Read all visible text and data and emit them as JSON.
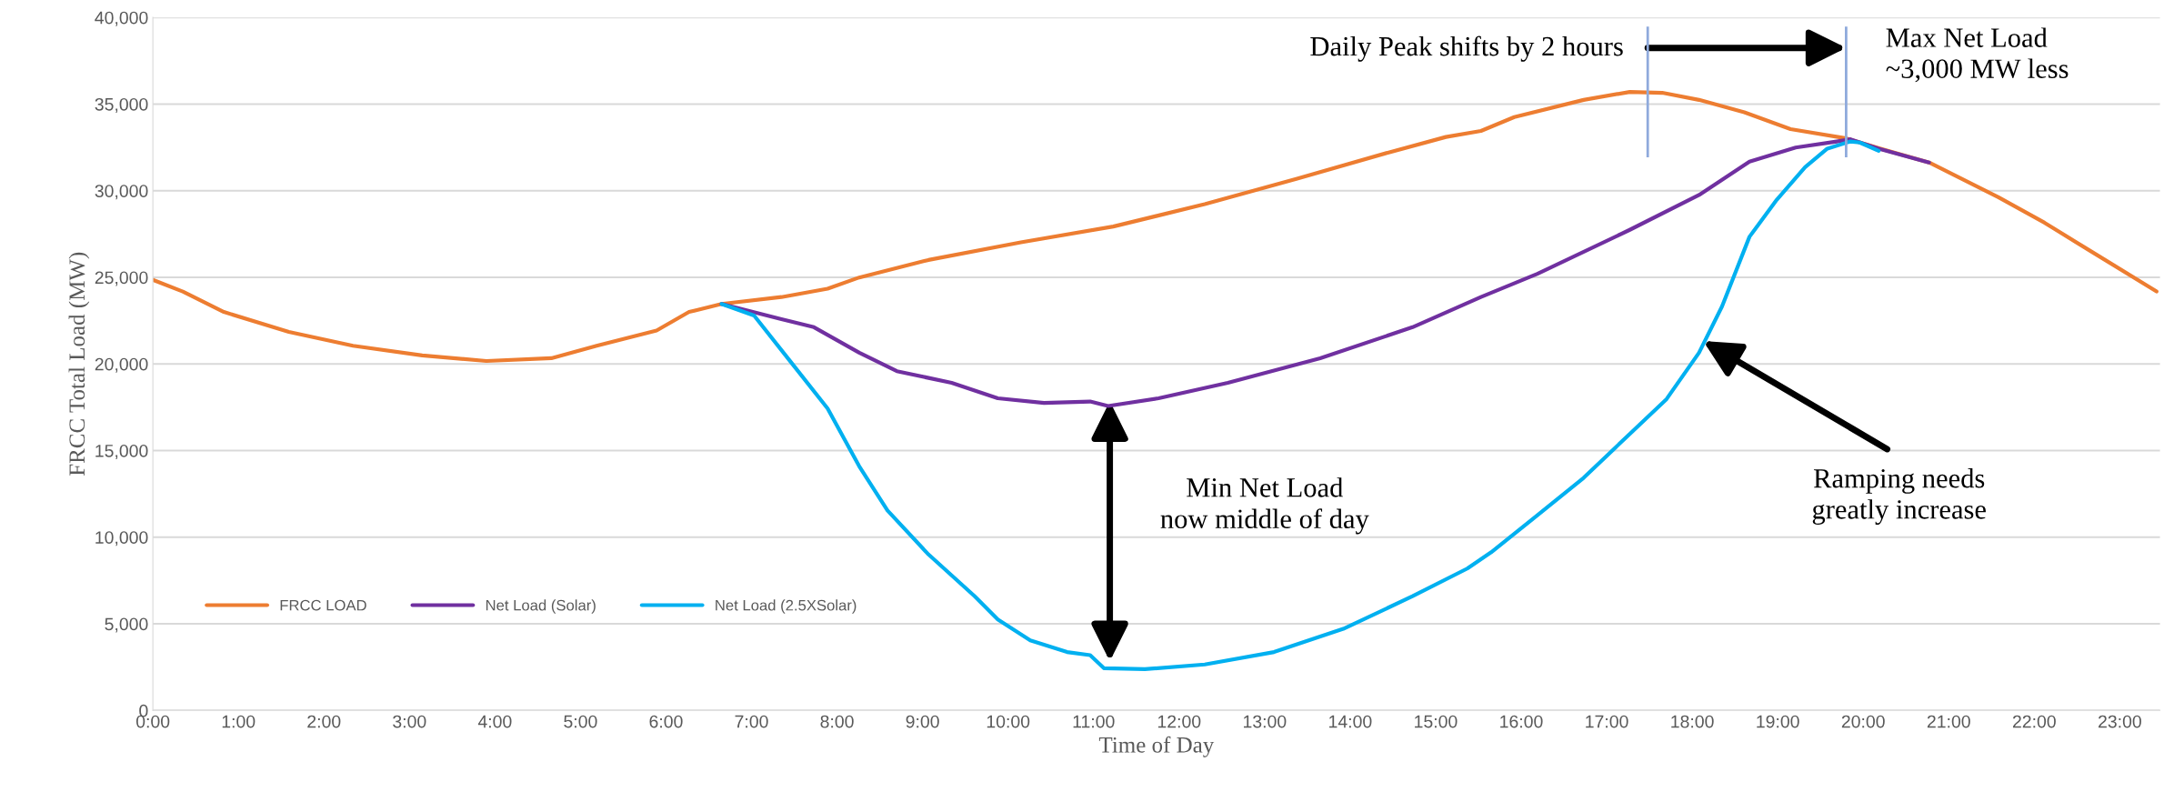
{
  "chart_data": {
    "type": "line",
    "xlabel": "Time of Day",
    "ylabel": "FRCC Total Load (MW)",
    "xlim": [
      0,
      23.47
    ],
    "xticks": [
      {
        "value": 0,
        "label": "0:00"
      },
      {
        "value": 1,
        "label": "1:00"
      },
      {
        "value": 2,
        "label": "2:00"
      },
      {
        "value": 3,
        "label": "3:00"
      },
      {
        "value": 4,
        "label": "4:00"
      },
      {
        "value": 5,
        "label": "5:00"
      },
      {
        "value": 6,
        "label": "6:00"
      },
      {
        "value": 7,
        "label": "7:00"
      },
      {
        "value": 8,
        "label": "8:00"
      },
      {
        "value": 9,
        "label": "9:00"
      },
      {
        "value": 10,
        "label": "10:00"
      },
      {
        "value": 11,
        "label": "11:00"
      },
      {
        "value": 12,
        "label": "12:00"
      },
      {
        "value": 13,
        "label": "13:00"
      },
      {
        "value": 14,
        "label": "14:00"
      },
      {
        "value": 15,
        "label": "15:00"
      },
      {
        "value": 16,
        "label": "16:00"
      },
      {
        "value": 17,
        "label": "17:00"
      },
      {
        "value": 18,
        "label": "18:00"
      },
      {
        "value": 19,
        "label": "19:00"
      },
      {
        "value": 20,
        "label": "20:00"
      },
      {
        "value": 21,
        "label": "21:00"
      },
      {
        "value": 22,
        "label": "22:00"
      },
      {
        "value": 23,
        "label": "23:00"
      }
    ],
    "ylim": [
      0,
      40000
    ],
    "yticks": [
      0,
      {
        "value": 5000,
        "label": "5,000"
      },
      {
        "value": 10000,
        "label": "10,000"
      },
      {
        "value": 15000,
        "label": "15,000"
      },
      {
        "value": 20000,
        "label": "20,000"
      },
      {
        "value": 25000,
        "label": "25,000"
      },
      {
        "value": 30000,
        "label": "30,000"
      },
      {
        "value": 35000,
        "label": "35,000"
      },
      {
        "value": 40000,
        "label": "40,000"
      }
    ],
    "grid": "y",
    "legend": "bottom left",
    "marker": "none",
    "line_style": "solid",
    "series": [
      {
        "name": "FRCC LOAD",
        "color": "#ed7d31",
        "x": [
          0,
          0.35,
          0.83,
          1.59,
          2.34,
          3.15,
          3.9,
          4.66,
          5.19,
          5.89,
          6.27,
          6.65,
          7.35,
          7.89,
          8.26,
          9.07,
          10.15,
          11.23,
          12.3,
          13.38,
          14.46,
          15.12,
          15.53,
          15.92,
          16.73,
          17.27,
          17.65,
          18.08,
          18.61,
          19.15,
          19.8,
          20.23,
          20.77,
          21.58,
          22.12,
          22.65,
          23.43
        ],
        "values": [
          24850,
          24180,
          23000,
          21850,
          21050,
          20490,
          20170,
          20330,
          21050,
          21930,
          23000,
          23460,
          23860,
          24340,
          24990,
          26000,
          27020,
          27930,
          29220,
          30690,
          32220,
          33100,
          33450,
          34250,
          35240,
          35700,
          35650,
          35240,
          34520,
          33550,
          33020,
          32380,
          31630,
          29620,
          28150,
          26540,
          24180
        ]
      },
      {
        "name": "Net Load (Solar)",
        "color": "#7030a0",
        "x": [
          6.65,
          7.35,
          7.73,
          8.26,
          8.7,
          9.34,
          9.88,
          10.42,
          10.96,
          11.17,
          11.76,
          12.57,
          13.65,
          14.73,
          15.53,
          16.19,
          17.27,
          18.08,
          18.67,
          19.21,
          19.69,
          19.85,
          20.18,
          20.77
        ],
        "values": [
          23460,
          22580,
          22120,
          20650,
          19580,
          18910,
          18020,
          17750,
          17830,
          17570,
          18020,
          18910,
          20330,
          22120,
          23860,
          25200,
          27740,
          29750,
          31680,
          32490,
          32840,
          32970,
          32430,
          31630
        ]
      },
      {
        "name": "Net Load (2.5XSolar)",
        "color": "#00b0f0",
        "x": [
          6.65,
          7.03,
          7.46,
          7.89,
          8.26,
          8.59,
          9.07,
          9.61,
          9.88,
          10.26,
          10.69,
          10.96,
          11.12,
          11.6,
          12.3,
          13.11,
          13.92,
          14.73,
          15.37,
          15.65,
          16.19,
          16.73,
          17.27,
          17.7,
          18.08,
          18.35,
          18.67,
          18.99,
          19.32,
          19.58,
          19.85,
          19.96,
          20.18
        ],
        "values": [
          23460,
          22790,
          20110,
          17430,
          14090,
          11540,
          9000,
          6590,
          5250,
          4040,
          3370,
          3190,
          2440,
          2380,
          2650,
          3370,
          4710,
          6590,
          8190,
          9130,
          11270,
          13420,
          15960,
          17970,
          20650,
          23330,
          27340,
          29480,
          31360,
          32430,
          32840,
          32780,
          32300
        ]
      }
    ],
    "ref_lines": [
      {
        "axis": "x",
        "value": 17.48,
        "color": "#8faadc"
      },
      {
        "axis": "x",
        "value": 19.8,
        "color": "#8faadc"
      }
    ],
    "annotations": [
      "Daily Peak shifts by 2 hours",
      "Max Net Load\n~3,000 MW less",
      "Min Net Load\nnow middle of day",
      "Ramping needs\ngreatly increase"
    ]
  }
}
